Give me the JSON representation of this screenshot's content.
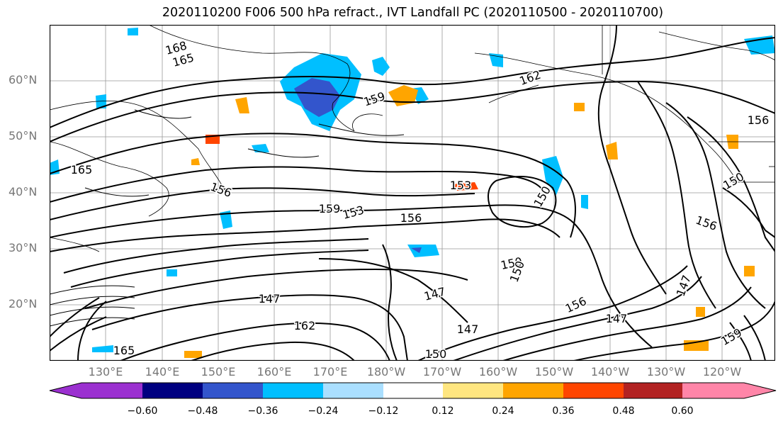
{
  "title": "2020110200 F006 500 hPa refract., IVT Landfall PC (2020110500 - 2020110700)",
  "lat_labels": [
    "60°N",
    "50°N",
    "40°N",
    "30°N",
    "20°N"
  ],
  "lon_labels": [
    "130°E",
    "140°E",
    "150°E",
    "160°E",
    "170°E",
    "180°W",
    "170°W",
    "160°W",
    "150°W",
    "140°W",
    "130°W",
    "120°W"
  ],
  "colorbar": {
    "ticks": [
      "−0.60",
      "−0.48",
      "−0.36",
      "−0.24",
      "−0.12",
      "0.12",
      "0.24",
      "0.36",
      "0.48",
      "0.60"
    ],
    "colors": [
      "#9b30d0",
      "#000080",
      "#3355cc",
      "#00bfff",
      "#aadfff",
      "#ffffff",
      "#ffe680",
      "#ffa500",
      "#ff4500",
      "#b22222",
      "#ff85a8"
    ]
  },
  "contour_labels": [
    "168",
    "165",
    "159",
    "162",
    "156",
    "150",
    "153",
    "147",
    "165",
    "156",
    "153",
    "159",
    "156",
    "150",
    "147",
    "147",
    "150",
    "156",
    "147",
    "162",
    "159",
    "165",
    "147",
    "150",
    "156",
    "150"
  ]
}
